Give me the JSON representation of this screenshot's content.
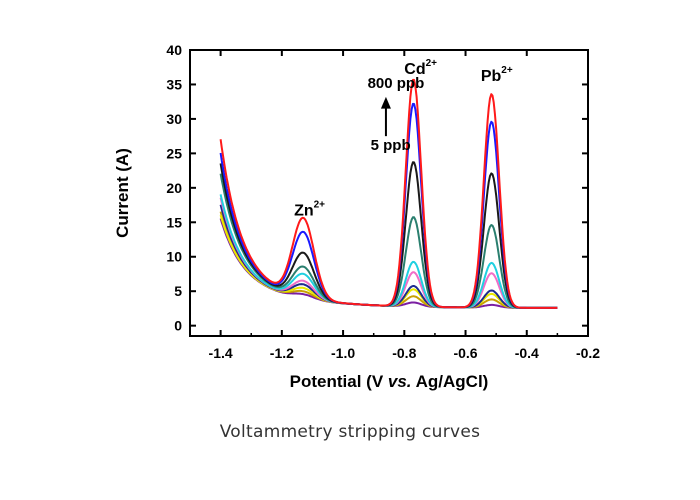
{
  "caption": "Voltammetry stripping curves",
  "chart_data": {
    "type": "line",
    "title": "",
    "xlabel": "Potential (V vs. Ag/AgCl)",
    "xlabel_parts": [
      "Potential (V ",
      "vs.",
      " Ag/AgCl)"
    ],
    "ylabel": "Current (A)",
    "xlim": [
      -1.5,
      -0.2
    ],
    "ylim": [
      -1.5,
      40
    ],
    "xticks": [
      -1.4,
      -1.2,
      -1.0,
      -0.8,
      -0.6,
      -0.4,
      -0.2
    ],
    "xtick_labels": [
      "-1.4",
      "-1.2",
      "-1.0",
      "-0.8",
      "-0.6",
      "-0.4",
      "-0.2"
    ],
    "yticks": [
      0,
      5,
      10,
      15,
      20,
      25,
      30,
      35,
      40
    ],
    "ytick_labels": [
      "0",
      "5",
      "10",
      "15",
      "20",
      "25",
      "30",
      "35",
      "40"
    ],
    "grid": false,
    "legend": "none",
    "annotations": [
      {
        "base": "Zn",
        "sup": "2+",
        "x": -1.16,
        "y": 16.0
      },
      {
        "base": "Cd",
        "sup": "2+",
        "x": -0.8,
        "y": 36.5
      },
      {
        "base": "Pb",
        "sup": "2+",
        "x": -0.55,
        "y": 35.5
      },
      {
        "text": "800 ppb",
        "x": -0.92,
        "y": 34.5
      },
      {
        "text": "5 ppb",
        "x": -0.91,
        "y": 25.5
      }
    ],
    "peaks": {
      "Zn": {
        "center": -1.13,
        "width": 0.035
      },
      "Cd": {
        "center": -0.77,
        "width": 0.025
      },
      "Pb": {
        "center": -0.515,
        "width": 0.025
      }
    },
    "series": [
      {
        "color": "#7b1fa2",
        "start": 13.0,
        "baseline": 3.0,
        "peak_heights": [
          0.6,
          0.6,
          0.4
        ]
      },
      {
        "color": "#c8a000",
        "start": 14.0,
        "baseline": 3.0,
        "peak_heights": [
          1.0,
          1.5,
          1.2
        ]
      },
      {
        "color": "#e8e800",
        "start": 13.5,
        "baseline": 3.0,
        "peak_heights": [
          1.5,
          2.5,
          2.0
        ]
      },
      {
        "color": "#1e2c8f",
        "start": 15.0,
        "baseline": 3.0,
        "peak_heights": [
          2.0,
          3.0,
          2.5
        ]
      },
      {
        "color": "#f06ec8",
        "start": 16.0,
        "baseline": 3.0,
        "peak_heights": [
          2.5,
          5.0,
          5.0
        ]
      },
      {
        "color": "#20d0e0",
        "start": 16.5,
        "baseline": 3.0,
        "peak_heights": [
          3.5,
          6.5,
          6.5
        ]
      },
      {
        "color": "#2a7f6f",
        "start": 19.5,
        "baseline": 3.0,
        "peak_heights": [
          4.5,
          13.0,
          12.0
        ]
      },
      {
        "color": "#1a1a1a",
        "start": 21.0,
        "baseline": 3.0,
        "peak_heights": [
          6.5,
          21.0,
          19.5
        ]
      },
      {
        "color": "#1a1aff",
        "start": 22.5,
        "baseline": 3.0,
        "peak_heights": [
          9.5,
          29.5,
          27.0
        ]
      },
      {
        "color": "#ff1a1a",
        "start": 24.5,
        "baseline": 3.0,
        "peak_heights": [
          11.5,
          33.0,
          31.0
        ]
      }
    ]
  }
}
